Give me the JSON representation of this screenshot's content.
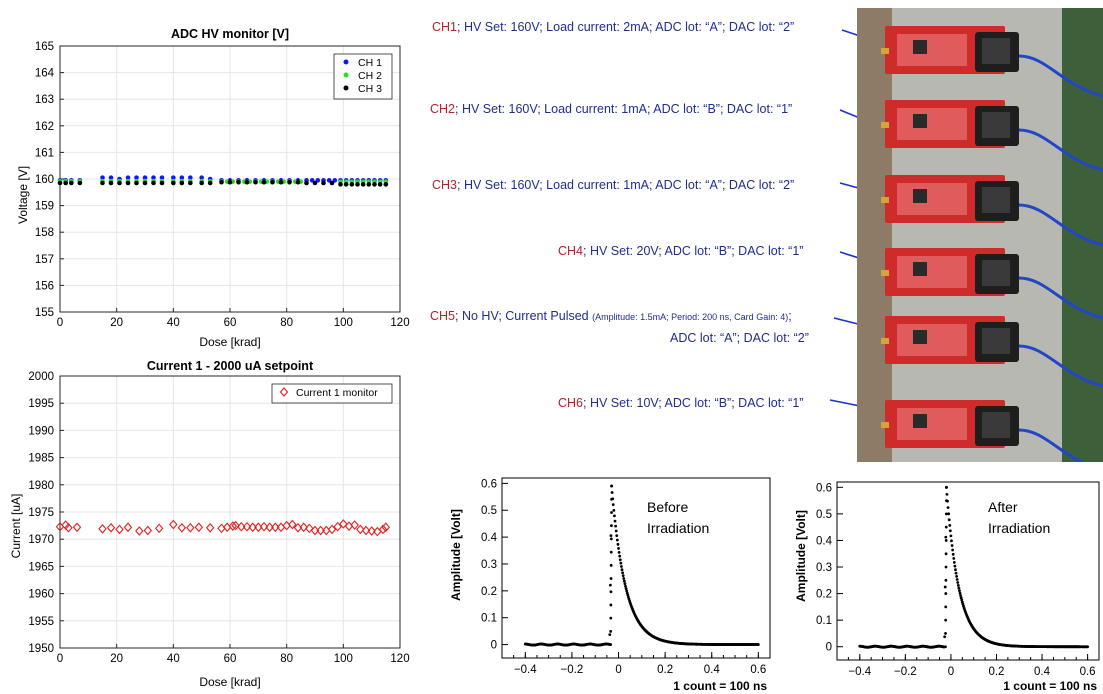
{
  "chart_data": [
    {
      "type": "scatter",
      "title": "ADC HV monitor [V]",
      "xlabel": "Dose [krad]",
      "ylabel": "Voltage [V]",
      "xlim": [
        0,
        120
      ],
      "ylim": [
        155,
        165
      ],
      "xticks": [
        "0",
        "20",
        "40",
        "60",
        "80",
        "100",
        "120"
      ],
      "yticks": [
        "155",
        "156",
        "157",
        "158",
        "159",
        "160",
        "161",
        "162",
        "163",
        "164",
        "165"
      ],
      "grid": true,
      "legend": "top-right",
      "series": [
        {
          "name": "CH 1",
          "color": "#1414ff",
          "x": [
            0,
            2,
            4,
            7,
            15,
            18,
            21,
            24,
            27,
            30,
            33,
            36,
            40,
            43,
            46,
            50,
            53,
            57,
            60,
            63,
            66,
            69,
            72,
            75,
            78,
            81,
            84,
            87,
            89,
            91,
            93,
            95,
            97,
            99,
            101,
            103,
            105,
            107,
            109,
            111,
            113,
            115
          ],
          "y": [
            159.95,
            159.95,
            159.95,
            159.95,
            160.05,
            160.05,
            160,
            160.05,
            160.05,
            160.05,
            160.05,
            160.05,
            160.05,
            160.05,
            160.05,
            160.05,
            160,
            159.95,
            159.95,
            159.95,
            159.95,
            159.95,
            159.95,
            159.95,
            159.95,
            159.95,
            159.95,
            159.95,
            159.95,
            159.95,
            159.95,
            159.95,
            159.95,
            159.95,
            159.95,
            159.95,
            159.95,
            159.95,
            159.95,
            159.95,
            159.95,
            159.95
          ]
        },
        {
          "name": "CH 2",
          "color": "#28dc28",
          "x": [
            0,
            2,
            4,
            7,
            15,
            18,
            21,
            24,
            27,
            30,
            33,
            36,
            40,
            43,
            46,
            50,
            53,
            57,
            59,
            61,
            63,
            65,
            67,
            69,
            71,
            73,
            75,
            77,
            79,
            81,
            83,
            85,
            99,
            101,
            103,
            105,
            107,
            109,
            111,
            113,
            115
          ],
          "y": [
            159.92,
            159.92,
            159.92,
            159.92,
            159.92,
            159.92,
            159.92,
            159.92,
            159.92,
            159.92,
            159.92,
            159.92,
            159.92,
            159.92,
            159.92,
            159.92,
            159.92,
            159.9,
            159.9,
            159.9,
            159.9,
            159.9,
            159.9,
            159.9,
            159.9,
            159.9,
            159.9,
            159.9,
            159.9,
            159.9,
            159.9,
            159.9,
            159.9,
            159.9,
            159.9,
            159.9,
            159.9,
            159.9,
            159.9,
            159.9,
            159.9
          ]
        },
        {
          "name": "CH 3",
          "color": "#000000",
          "x": [
            0,
            2,
            4,
            7,
            15,
            18,
            21,
            24,
            27,
            30,
            33,
            36,
            40,
            43,
            46,
            50,
            53,
            57,
            60,
            63,
            66,
            69,
            72,
            75,
            78,
            81,
            84,
            87,
            90,
            93,
            96,
            99,
            101,
            103,
            105,
            107,
            109,
            111,
            113,
            115
          ],
          "y": [
            159.85,
            159.85,
            159.85,
            159.85,
            159.85,
            159.85,
            159.85,
            159.85,
            159.85,
            159.85,
            159.85,
            159.85,
            159.85,
            159.85,
            159.85,
            159.85,
            159.85,
            159.88,
            159.88,
            159.88,
            159.88,
            159.88,
            159.88,
            159.88,
            159.88,
            159.88,
            159.88,
            159.85,
            159.85,
            159.85,
            159.85,
            159.8,
            159.8,
            159.8,
            159.8,
            159.8,
            159.8,
            159.8,
            159.8,
            159.8
          ]
        }
      ]
    },
    {
      "type": "scatter",
      "title": "Current 1 - 2000 uA setpoint",
      "xlabel": "Dose [krad]",
      "ylabel": "Current [uA]",
      "xlim": [
        0,
        120
      ],
      "ylim": [
        1950,
        2000
      ],
      "xticks": [
        "0",
        "20",
        "40",
        "60",
        "80",
        "100",
        "120"
      ],
      "yticks": [
        "1950",
        "1955",
        "1960",
        "1965",
        "1970",
        "1975",
        "1980",
        "1985",
        "1990",
        "1995",
        "2000"
      ],
      "grid": true,
      "legend": "top-right",
      "series": [
        {
          "name": "Current 1 monitor",
          "color": "#e61e1e",
          "x": [
            0,
            2,
            3,
            6,
            15,
            18,
            21,
            24,
            28,
            31,
            35,
            40,
            43,
            46,
            49,
            53,
            57,
            59,
            61,
            62,
            64,
            66,
            68,
            70,
            72,
            74,
            76,
            78,
            80,
            82,
            84,
            86,
            88,
            90,
            92,
            94,
            96,
            98,
            100,
            102,
            104,
            106,
            108,
            110,
            112,
            114,
            115
          ],
          "y": [
            1972.3,
            1972.6,
            1972.1,
            1972.2,
            1971.9,
            1972.1,
            1971.8,
            1972.2,
            1971.5,
            1971.6,
            1972,
            1972.7,
            1972.1,
            1972.1,
            1972.2,
            1972.1,
            1972,
            1972.2,
            1972.4,
            1972.5,
            1972.3,
            1972.3,
            1972.2,
            1972.2,
            1972.3,
            1972.2,
            1972.2,
            1972.2,
            1972.5,
            1972.7,
            1972.1,
            1972.2,
            1972,
            1971.6,
            1971.6,
            1971.6,
            1971.8,
            1972.3,
            1972.8,
            1972.4,
            1972.6,
            1971.8,
            1971.6,
            1971.5,
            1971.4,
            1971.8,
            1972.2
          ]
        }
      ]
    },
    {
      "type": "scatter",
      "ylabel": "Amplitude [Volt]",
      "xlabel": "1 count = 100 ns",
      "annotation": [
        "Before",
        "Irradiation"
      ],
      "xlim": [
        -0.5,
        0.65
      ],
      "ylim": [
        -0.05,
        0.62
      ],
      "xticks": [
        "−0.4",
        "−0.2",
        "0",
        "0.2",
        "0.4",
        "0.6"
      ],
      "yticks": [
        "0",
        "0.1",
        "0.2",
        "0.3",
        "0.4",
        "0.5",
        "0.6"
      ],
      "grid": false,
      "pulse": {
        "t0": -0.03,
        "peak": 0.59,
        "tau": 0.06,
        "x_start": -0.4,
        "x_end": 0.6
      }
    },
    {
      "type": "scatter",
      "ylabel": "Amplitude [Volt]",
      "xlabel": "1 count = 100 ns",
      "annotation": [
        "After",
        "Irradiation"
      ],
      "xlim": [
        -0.5,
        0.65
      ],
      "ylim": [
        -0.05,
        0.62
      ],
      "xticks": [
        "−0.4",
        "−0.2",
        "0",
        "0.2",
        "0.4",
        "0.6"
      ],
      "yticks": [
        "0",
        "0.1",
        "0.2",
        "0.3",
        "0.4",
        "0.5",
        "0.6"
      ],
      "grid": false,
      "pulse": {
        "t0": -0.02,
        "peak": 0.6,
        "tau": 0.055,
        "x_start": -0.4,
        "x_end": 0.6
      }
    }
  ],
  "annotations": {
    "ch1": {
      "label": "CH1",
      "text": "; HV Set: 160V; Load current: 2mA; ADC lot: “A”; DAC lot: “2”"
    },
    "ch2": {
      "label": "CH2",
      "text": "; HV Set: 160V; Load current: 1mA; ADC lot: “B”; DAC lot: “1”"
    },
    "ch3": {
      "label": "CH3",
      "text": "; HV Set: 160V; Load current: 1mA; ADC lot: “A”; DAC lot: “2”"
    },
    "ch4": {
      "label": "CH4",
      "text": "; HV Set: 20V; ADC lot: “B”; DAC lot: “1”"
    },
    "ch5": {
      "label": "CH5",
      "text": "; No HV; Current Pulsed ",
      "small": "(Amplitude: 1.5mA; Period: 200 ns, Card Gain: 4)",
      "tail": ";",
      "line2": "ADC lot: “A”; DAC lot: “2”"
    },
    "ch6": {
      "label": "CH6",
      "text": "; HV Set: 10V; ADC lot: “B”; DAC lot: “1”"
    }
  },
  "colors": {
    "arrow": "#1c2fd6",
    "board": "#cf2b2b",
    "metal": "#b8b8b2"
  }
}
